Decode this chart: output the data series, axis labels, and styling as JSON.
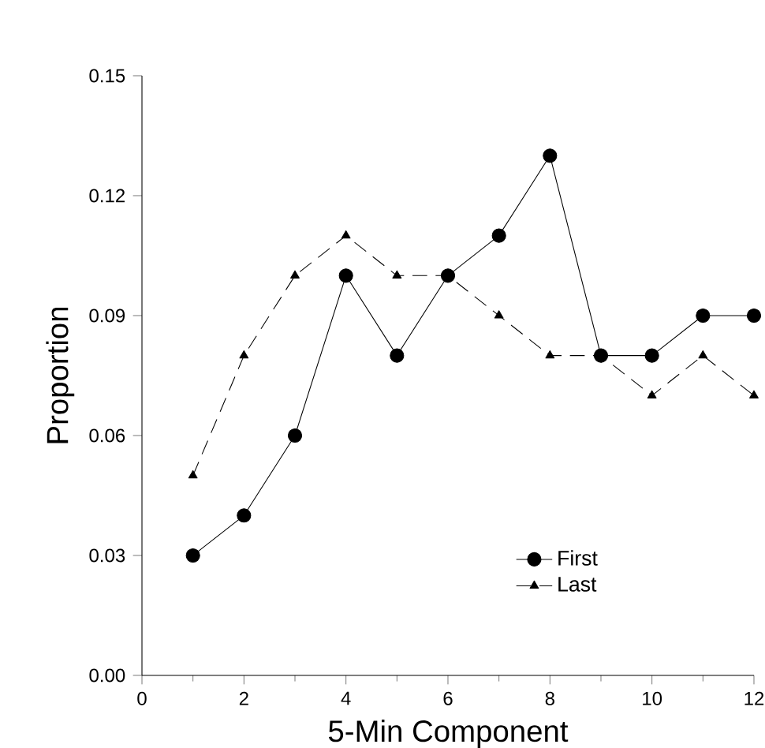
{
  "chart_data": {
    "type": "line",
    "xlabel": "5-Min Component",
    "ylabel": "Proportion",
    "x": [
      1,
      2,
      3,
      4,
      5,
      6,
      7,
      8,
      9,
      10,
      11,
      12
    ],
    "series": [
      {
        "name": "First",
        "color": "#000000",
        "marker": "circle",
        "line_style": "solid",
        "values": [
          0.03,
          0.04,
          0.06,
          0.1,
          0.08,
          0.1,
          0.11,
          0.13,
          0.08,
          0.08,
          0.09,
          0.09
        ]
      },
      {
        "name": "Last",
        "color": "#000000",
        "marker": "triangle",
        "line_style": "dashed",
        "values": [
          0.05,
          0.08,
          0.1,
          0.11,
          0.1,
          0.1,
          0.09,
          0.08,
          0.08,
          0.07,
          0.08,
          0.07
        ]
      }
    ],
    "xlim": [
      0,
      12
    ],
    "xticks": [
      0,
      2,
      4,
      6,
      8,
      10,
      12
    ],
    "ylim": [
      0,
      0.15
    ],
    "yticks": [
      {
        "value": 0,
        "label": "0.00"
      },
      {
        "value": 0.03,
        "label": "0.03"
      },
      {
        "value": 0.06,
        "label": "0.06"
      },
      {
        "value": 0.09,
        "label": "0.09"
      },
      {
        "value": 0.12,
        "label": "0.12"
      },
      {
        "value": 0.15,
        "label": "0.15"
      }
    ],
    "grid": false,
    "legend": "bottom right"
  }
}
